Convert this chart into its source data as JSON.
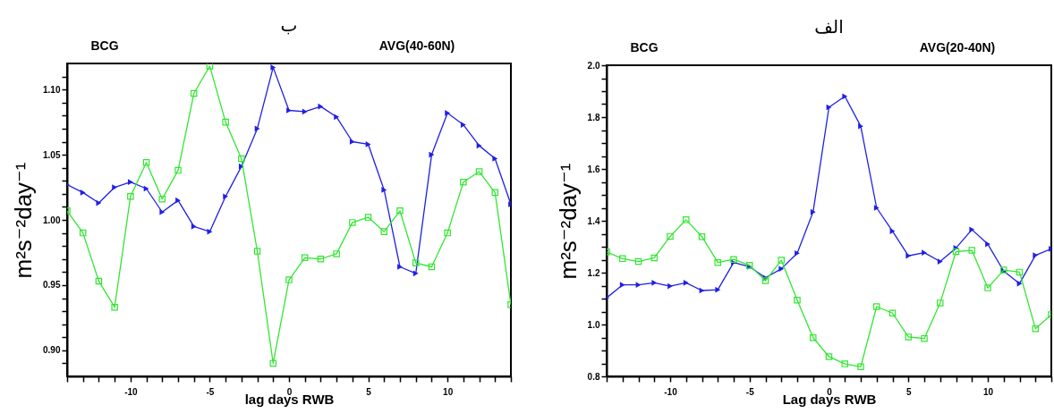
{
  "chart_data": [
    {
      "type": "line",
      "title": "ب",
      "xlabel": "lag days RWB",
      "ylabel": "m²s⁻²day⁻¹",
      "annotations": [
        "BCG",
        "AVG(40-60N)"
      ],
      "x": [
        -14,
        -13,
        -12,
        -11,
        -10,
        -9,
        -8,
        -7,
        -6,
        -5,
        -4,
        -3,
        -2,
        -1,
        0,
        1,
        2,
        3,
        4,
        5,
        6,
        7,
        8,
        9,
        10,
        11,
        12,
        13,
        14
      ],
      "xlim": [
        -14,
        14
      ],
      "ylim": [
        0.88,
        1.12
      ],
      "xticks": [
        {
          "value": -14,
          "label": null
        },
        {
          "value": -13,
          "label": null
        },
        {
          "value": -12,
          "label": null
        },
        {
          "value": -11,
          "label": null
        },
        -10,
        {
          "value": -9,
          "label": null
        },
        {
          "value": -8,
          "label": null
        },
        {
          "value": -7,
          "label": null
        },
        {
          "value": -6,
          "label": null
        },
        -5,
        {
          "value": -4,
          "label": null
        },
        {
          "value": -3,
          "label": null
        },
        {
          "value": -2,
          "label": null
        },
        {
          "value": -1,
          "label": null
        },
        0,
        {
          "value": 1,
          "label": null
        },
        {
          "value": 2,
          "label": null
        },
        {
          "value": 3,
          "label": null
        },
        {
          "value": 4,
          "label": null
        },
        5,
        {
          "value": 6,
          "label": null
        },
        {
          "value": 7,
          "label": null
        },
        {
          "value": 8,
          "label": null
        },
        {
          "value": 9,
          "label": null
        },
        10,
        {
          "value": 11,
          "label": null
        },
        {
          "value": 12,
          "label": null
        },
        {
          "value": 13,
          "label": null
        },
        {
          "value": 14,
          "label": null
        }
      ],
      "yticks": [
        {
          "value": 0.89,
          "label": null
        },
        {
          "value": 0.9,
          "label": "0.90"
        },
        {
          "value": 0.91,
          "label": null
        },
        {
          "value": 0.92,
          "label": null
        },
        {
          "value": 0.93,
          "label": null
        },
        {
          "value": 0.94,
          "label": null
        },
        0.95,
        {
          "value": 0.96,
          "label": null
        },
        {
          "value": 0.97,
          "label": null
        },
        {
          "value": 0.98,
          "label": null
        },
        {
          "value": 0.99,
          "label": null
        },
        {
          "value": 1.0,
          "label": "1.00"
        },
        {
          "value": 1.01,
          "label": null
        },
        {
          "value": 1.02,
          "label": null
        },
        {
          "value": 1.03,
          "label": null
        },
        {
          "value": 1.04,
          "label": null
        },
        1.05,
        {
          "value": 1.06,
          "label": null
        },
        {
          "value": 1.07,
          "label": null
        },
        {
          "value": 1.08,
          "label": null
        },
        {
          "value": 1.09,
          "label": null
        },
        {
          "value": 1.1,
          "label": "1.10"
        },
        {
          "value": 1.11,
          "label": null
        }
      ],
      "series": [
        {
          "color": "#1f1fe6",
          "marker": "triangle",
          "values": [
            1.027,
            1.021,
            1.013,
            1.025,
            1.029,
            1.024,
            1.006,
            1.015,
            0.995,
            0.991,
            1.018,
            1.041,
            1.07,
            1.117,
            1.084,
            1.083,
            1.087,
            1.079,
            1.06,
            1.058,
            1.023,
            0.964,
            0.959,
            1.05,
            1.082,
            1.073,
            1.057,
            1.047,
            1.012
          ]
        },
        {
          "color": "#33e633",
          "marker": "square",
          "values": [
            1.007,
            0.99,
            0.953,
            0.933,
            1.018,
            1.044,
            1.016,
            1.038,
            1.097,
            1.118,
            1.075,
            1.047,
            0.976,
            0.89,
            0.954,
            0.971,
            0.97,
            0.974,
            0.998,
            1.002,
            0.991,
            1.007,
            0.967,
            0.964,
            0.99,
            1.029,
            1.037,
            1.021,
            0.935
          ]
        }
      ]
    },
    {
      "type": "line",
      "title": "الف",
      "xlabel": "Lag days RWB",
      "ylabel": "m²s⁻²day⁻¹",
      "annotations": [
        "BCG",
        "AVG(20-40N)"
      ],
      "x": [
        -14,
        -13,
        -12,
        -11,
        -10,
        -9,
        -8,
        -7,
        -6,
        -5,
        -4,
        -3,
        -2,
        -1,
        0,
        1,
        2,
        3,
        4,
        5,
        6,
        7,
        8,
        9,
        10,
        11,
        12,
        13,
        14
      ],
      "xlim": [
        -14,
        14
      ],
      "ylim": [
        0.8,
        2.0
      ],
      "xticks": [
        {
          "value": -14,
          "label": null
        },
        {
          "value": -13,
          "label": null
        },
        {
          "value": -12,
          "label": null
        },
        {
          "value": -11,
          "label": null
        },
        -10,
        {
          "value": -9,
          "label": null
        },
        {
          "value": -8,
          "label": null
        },
        {
          "value": -7,
          "label": null
        },
        {
          "value": -6,
          "label": null
        },
        -5,
        {
          "value": -4,
          "label": null
        },
        {
          "value": -3,
          "label": null
        },
        {
          "value": -2,
          "label": null
        },
        {
          "value": -1,
          "label": null
        },
        0,
        {
          "value": 1,
          "label": null
        },
        {
          "value": 2,
          "label": null
        },
        {
          "value": 3,
          "label": null
        },
        {
          "value": 4,
          "label": null
        },
        5,
        {
          "value": 6,
          "label": null
        },
        {
          "value": 7,
          "label": null
        },
        {
          "value": 8,
          "label": null
        },
        {
          "value": 9,
          "label": null
        },
        10,
        {
          "value": 11,
          "label": null
        },
        {
          "value": 12,
          "label": null
        },
        {
          "value": 13,
          "label": null
        },
        {
          "value": 14,
          "label": null
        }
      ],
      "yticks": [
        0.8,
        {
          "value": 0.85,
          "label": null
        },
        {
          "value": 0.9,
          "label": null
        },
        {
          "value": 0.95,
          "label": null
        },
        {
          "value": 1.0,
          "label": "1.0"
        },
        {
          "value": 1.05,
          "label": null
        },
        {
          "value": 1.1,
          "label": null
        },
        {
          "value": 1.15,
          "label": null
        },
        1.2,
        {
          "value": 1.25,
          "label": null
        },
        {
          "value": 1.3,
          "label": null
        },
        {
          "value": 1.35,
          "label": null
        },
        1.4,
        {
          "value": 1.45,
          "label": null
        },
        {
          "value": 1.5,
          "label": null
        },
        {
          "value": 1.55,
          "label": null
        },
        1.6,
        {
          "value": 1.65,
          "label": null
        },
        {
          "value": 1.7,
          "label": null
        },
        {
          "value": 1.75,
          "label": null
        },
        1.8,
        {
          "value": 1.85,
          "label": null
        },
        {
          "value": 1.9,
          "label": null
        },
        {
          "value": 1.95,
          "label": null
        },
        {
          "value": 2.0,
          "label": "2.0"
        }
      ],
      "series": [
        {
          "color": "#1f1fe6",
          "marker": "triangle",
          "values": [
            1.103,
            1.153,
            1.153,
            1.161,
            1.148,
            1.161,
            1.131,
            1.134,
            1.239,
            1.223,
            1.18,
            1.215,
            1.275,
            1.434,
            1.838,
            1.88,
            1.765,
            1.45,
            1.36,
            1.265,
            1.277,
            1.243,
            1.295,
            1.366,
            1.31,
            1.206,
            1.158,
            1.267,
            1.292
          ]
        },
        {
          "color": "#33e633",
          "marker": "square",
          "values": [
            1.28,
            1.254,
            1.243,
            1.257,
            1.34,
            1.404,
            1.339,
            1.239,
            1.251,
            1.228,
            1.169,
            1.248,
            1.094,
            0.949,
            0.876,
            0.848,
            0.837,
            1.069,
            1.044,
            0.952,
            0.946,
            1.083,
            1.281,
            1.286,
            1.141,
            1.21,
            1.202,
            0.984,
            1.038
          ]
        }
      ]
    }
  ]
}
